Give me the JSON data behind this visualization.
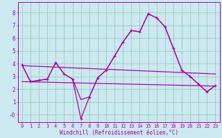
{
  "xlabel": "Windchill (Refroidissement éolien,°C)",
  "background_color": "#cce8f0",
  "line_color": "#aa00aa",
  "grid_color": "#99ccbb",
  "xlim": [
    -0.5,
    23.5
  ],
  "ylim": [
    -0.55,
    8.8
  ],
  "yticks": [
    0,
    1,
    2,
    3,
    4,
    5,
    6,
    7,
    8
  ],
  "ytick_labels": [
    "-0",
    "1",
    "2",
    "3",
    "4",
    "5",
    "6",
    "7",
    "8"
  ],
  "xticks": [
    0,
    1,
    2,
    3,
    4,
    5,
    6,
    7,
    8,
    9,
    10,
    11,
    12,
    13,
    14,
    15,
    16,
    17,
    18,
    19,
    20,
    21,
    22,
    23
  ],
  "series_main": [
    3.9,
    2.6,
    2.7,
    2.8,
    4.1,
    3.2,
    2.8,
    -0.3,
    1.4,
    2.9,
    3.5,
    4.6,
    5.7,
    6.6,
    6.5,
    7.9,
    7.6,
    6.9,
    5.2,
    3.5,
    3.0,
    2.4,
    1.8,
    2.3
  ],
  "series_smooth": [
    3.9,
    2.6,
    2.7,
    2.8,
    4.1,
    3.2,
    2.8,
    1.2,
    1.4,
    2.9,
    3.5,
    4.6,
    5.7,
    6.6,
    6.5,
    7.9,
    7.6,
    6.9,
    5.2,
    3.5,
    3.0,
    2.4,
    1.8,
    2.3
  ],
  "trend1_x": [
    0,
    23
  ],
  "trend1_y": [
    3.85,
    3.2
  ],
  "trend2_x": [
    0,
    23
  ],
  "trend2_y": [
    2.6,
    2.25
  ],
  "lw": 0.9
}
